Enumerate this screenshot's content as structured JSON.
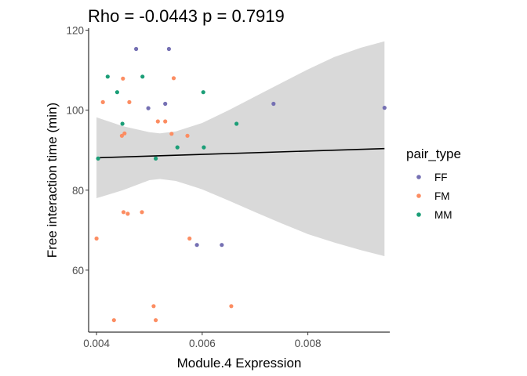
{
  "chart_data": {
    "type": "scatter",
    "title": "Rho = -0.0443 p = 0.7919",
    "xlabel": "Module.4 Expression",
    "ylabel": "Free interaction time (min)",
    "xlim": [
      0.00385,
      0.00955
    ],
    "ylim": [
      44.5,
      120.5
    ],
    "x_ticks": [
      {
        "value": 0.004,
        "label": "0.004"
      },
      {
        "value": 0.006,
        "label": "0.006"
      },
      {
        "value": 0.008,
        "label": "0.008"
      }
    ],
    "y_ticks": [
      {
        "value": 60,
        "label": "60"
      },
      {
        "value": 80,
        "label": "80"
      },
      {
        "value": 100,
        "label": "100"
      },
      {
        "value": 120,
        "label": "120"
      }
    ],
    "grid": false,
    "legend": {
      "title": "pair_type",
      "position": "right",
      "entries": [
        {
          "label": "FF",
          "color": "#7570b3"
        },
        {
          "label": "FM",
          "color": "#fc8d62"
        },
        {
          "label": "MM",
          "color": "#1b9e77"
        }
      ]
    },
    "regression": {
      "line": [
        [
          0.004,
          88.1
        ],
        [
          0.00945,
          90.4
        ]
      ],
      "band_upper": [
        [
          0.004,
          98.2
        ],
        [
          0.0045,
          96.0
        ],
        [
          0.005,
          94.5
        ],
        [
          0.0052,
          94.2
        ],
        [
          0.0055,
          94.7
        ],
        [
          0.006,
          96.8
        ],
        [
          0.0065,
          100.0
        ],
        [
          0.007,
          103.4
        ],
        [
          0.0075,
          106.8
        ],
        [
          0.008,
          110.2
        ],
        [
          0.0085,
          113.3
        ],
        [
          0.009,
          115.6
        ],
        [
          0.00945,
          117.2
        ]
      ],
      "band_lower": [
        [
          0.004,
          78.0
        ],
        [
          0.0045,
          80.0
        ],
        [
          0.005,
          82.5
        ],
        [
          0.0052,
          82.8
        ],
        [
          0.0055,
          82.3
        ],
        [
          0.006,
          80.2
        ],
        [
          0.0065,
          77.4
        ],
        [
          0.007,
          74.5
        ],
        [
          0.0075,
          71.7
        ],
        [
          0.008,
          69.0
        ],
        [
          0.0085,
          66.9
        ],
        [
          0.009,
          65.0
        ],
        [
          0.00945,
          63.5
        ]
      ],
      "line_color": "#000000",
      "band_color": "#d9d9d9"
    },
    "series": [
      {
        "name": "FF",
        "color": "#7570b3",
        "points": [
          {
            "x": 0.00475,
            "y": 115.3
          },
          {
            "x": 0.00537,
            "y": 115.3
          },
          {
            "x": 0.0053,
            "y": 101.6
          },
          {
            "x": 0.00498,
            "y": 100.5
          },
          {
            "x": 0.00735,
            "y": 101.6
          },
          {
            "x": 0.00945,
            "y": 100.6
          },
          {
            "x": 0.0059,
            "y": 66.3
          },
          {
            "x": 0.00637,
            "y": 66.3
          }
        ]
      },
      {
        "name": "FM",
        "color": "#fc8d62",
        "points": [
          {
            "x": 0.00412,
            "y": 102.0
          },
          {
            "x": 0.0045,
            "y": 107.9
          },
          {
            "x": 0.00546,
            "y": 108.0
          },
          {
            "x": 0.00462,
            "y": 102.0
          },
          {
            "x": 0.00448,
            "y": 93.6
          },
          {
            "x": 0.00453,
            "y": 94.2
          },
          {
            "x": 0.00516,
            "y": 97.2
          },
          {
            "x": 0.0053,
            "y": 97.2
          },
          {
            "x": 0.00542,
            "y": 94.1
          },
          {
            "x": 0.00572,
            "y": 93.6
          },
          {
            "x": 0.00451,
            "y": 74.5
          },
          {
            "x": 0.00459,
            "y": 74.1
          },
          {
            "x": 0.00486,
            "y": 74.5
          },
          {
            "x": 0.004,
            "y": 67.9
          },
          {
            "x": 0.00576,
            "y": 67.9
          },
          {
            "x": 0.00508,
            "y": 51.0
          },
          {
            "x": 0.00655,
            "y": 51.0
          },
          {
            "x": 0.00433,
            "y": 47.5
          },
          {
            "x": 0.00512,
            "y": 47.5
          }
        ]
      },
      {
        "name": "MM",
        "color": "#1b9e77",
        "points": [
          {
            "x": 0.00421,
            "y": 108.4
          },
          {
            "x": 0.00487,
            "y": 108.4
          },
          {
            "x": 0.00439,
            "y": 104.5
          },
          {
            "x": 0.00602,
            "y": 104.5
          },
          {
            "x": 0.00449,
            "y": 96.6
          },
          {
            "x": 0.00665,
            "y": 96.6
          },
          {
            "x": 0.00553,
            "y": 90.7
          },
          {
            "x": 0.00603,
            "y": 90.7
          },
          {
            "x": 0.00403,
            "y": 87.9
          },
          {
            "x": 0.00512,
            "y": 87.9
          }
        ]
      }
    ]
  }
}
